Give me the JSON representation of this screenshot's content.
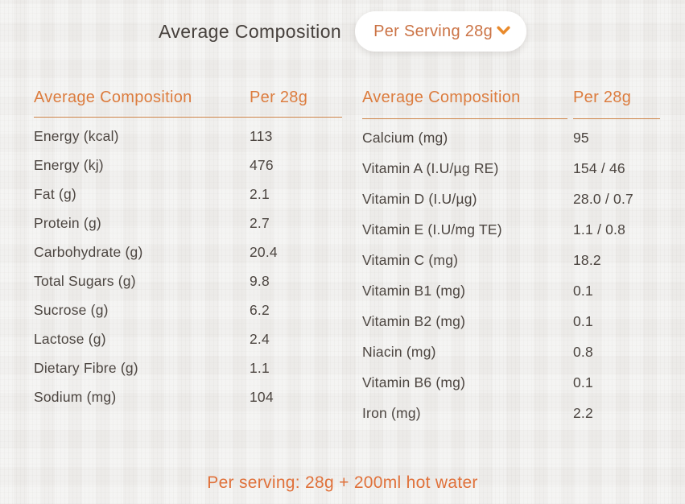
{
  "header": {
    "title": "Average Composition",
    "serving_selector_label": "Per Serving 28g"
  },
  "tables": [
    {
      "header_label": "Average Composition",
      "header_value": "Per 28g",
      "rows": [
        {
          "label": "Energy (kcal)",
          "value": "113"
        },
        {
          "label": "Energy (kj)",
          "value": "476"
        },
        {
          "label": "Fat (g)",
          "value": "2.1"
        },
        {
          "label": "Protein (g)",
          "value": "2.7"
        },
        {
          "label": "Carbohydrate (g)",
          "value": "20.4"
        },
        {
          "label": "Total Sugars (g)",
          "value": "9.8"
        },
        {
          "label": "Sucrose (g)",
          "value": "6.2"
        },
        {
          "label": "Lactose (g)",
          "value": "2.4"
        },
        {
          "label": "Dietary Fibre (g)",
          "value": "1.1"
        },
        {
          "label": "Sodium (mg)",
          "value": "104"
        }
      ]
    },
    {
      "header_label": "Average Composition",
      "header_value": "Per 28g",
      "rows": [
        {
          "label": "Calcium (mg)",
          "value": "95"
        },
        {
          "label": "Vitamin A (I.U/µg RE)",
          "value": "154 / 46"
        },
        {
          "label": "Vitamin D (I.U/µg)",
          "value": "28.0 / 0.7"
        },
        {
          "label": "Vitamin E (I.U/mg TE)",
          "value": "1.1 / 0.8"
        },
        {
          "label": "Vitamin C (mg)",
          "value": "18.2"
        },
        {
          "label": "Vitamin B1 (mg)",
          "value": "0.1"
        },
        {
          "label": "Vitamin B2 (mg)",
          "value": "0.1"
        },
        {
          "label": "Niacin (mg)",
          "value": "0.8"
        },
        {
          "label": "Vitamin B6 (mg)",
          "value": "0.1"
        },
        {
          "label": "Iron (mg)",
          "value": "2.2"
        }
      ]
    }
  ],
  "footer": {
    "note": "Per serving: 28g + 200ml hot water"
  },
  "icons": {
    "serving_selector": "chevron-down-icon"
  },
  "colors": {
    "accent_orange": "#dc7c3e",
    "underline_orange": "#cd8347",
    "chevron_orange": "#e98a2c",
    "pill_text_orange": "#cb7345",
    "footer_orange": "#e0713a",
    "text_dark": "#4c4540",
    "title_dark": "#46403c",
    "background": "#f0efed",
    "pill_background": "#ffffff"
  }
}
